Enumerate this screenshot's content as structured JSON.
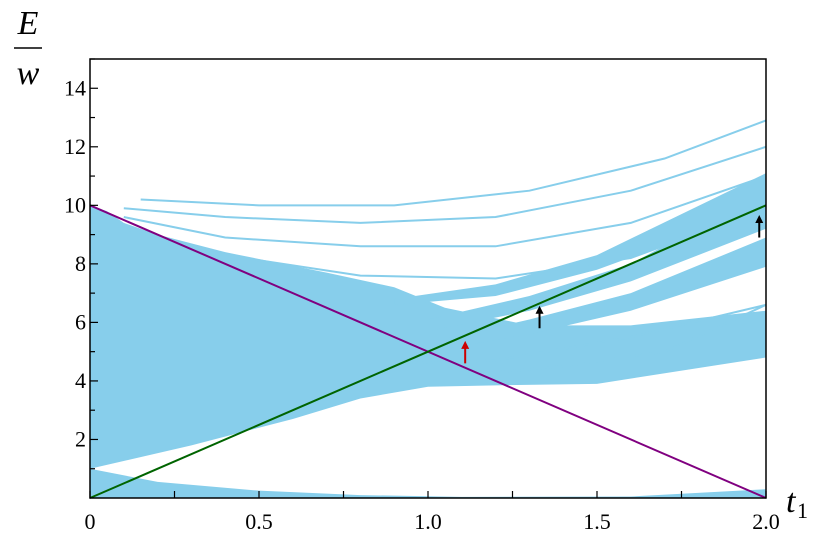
{
  "chart_data": {
    "type": "area",
    "xlabel": "t",
    "xlabel_subscript": "1",
    "ylabel_top": "E",
    "ylabel_bottom": "w",
    "xlim": [
      0,
      2.0
    ],
    "ylim": [
      0,
      15
    ],
    "x_ticks": [
      {
        "value": 0,
        "label": "0"
      },
      {
        "value": 0.5,
        "label": "0.5"
      },
      {
        "value": 1.0,
        "label": "1.0"
      },
      {
        "value": 1.5,
        "label": "1.5"
      },
      {
        "value": 2.0,
        "label": "2.0"
      }
    ],
    "y_ticks": [
      {
        "value": 2,
        "label": "2"
      },
      {
        "value": 4,
        "label": "4"
      },
      {
        "value": 6,
        "label": "6"
      },
      {
        "value": 8,
        "label": "8"
      },
      {
        "value": 10,
        "label": "10"
      },
      {
        "value": 12,
        "label": "12"
      },
      {
        "value": 14,
        "label": "14"
      }
    ],
    "grid": false,
    "colors": {
      "band": "#87ceeb",
      "purple_line": "#800080",
      "green_line": "#006400",
      "red_arrow": "#cc0000",
      "black_arrow": "#000000"
    },
    "series": [
      {
        "kind": "line",
        "color": "#800080",
        "x": [
          0,
          2.0
        ],
        "y": [
          10,
          0
        ]
      },
      {
        "kind": "line",
        "color": "#006400",
        "x": [
          0,
          2.0
        ],
        "y": [
          0,
          10
        ]
      }
    ],
    "bands": [
      {
        "lower": [
          [
            0,
            0
          ],
          [
            0.2,
            0
          ],
          [
            0.6,
            0
          ],
          [
            1.2,
            0
          ],
          [
            2,
            0
          ]
        ],
        "upper": [
          [
            0,
            1.0
          ],
          [
            0.2,
            0.55
          ],
          [
            0.5,
            0.25
          ],
          [
            0.8,
            0.1
          ],
          [
            1.1,
            0.04
          ],
          [
            1.6,
            0.05
          ],
          [
            2.0,
            0.3
          ]
        ]
      },
      {
        "lower": [
          [
            0,
            1.0
          ],
          [
            0.3,
            1.8
          ],
          [
            0.6,
            2.7
          ],
          [
            0.8,
            3.4
          ],
          [
            1.0,
            3.8
          ],
          [
            1.2,
            3.85
          ],
          [
            1.5,
            3.9
          ],
          [
            2.0,
            4.8
          ]
        ],
        "upper": [
          [
            0,
            10
          ],
          [
            0.05,
            9.8
          ],
          [
            0.1,
            9.4
          ],
          [
            0.2,
            9.0
          ],
          [
            0.4,
            8.4
          ],
          [
            0.7,
            7.7
          ],
          [
            0.9,
            7.2
          ],
          [
            1.05,
            6.5
          ],
          [
            1.3,
            5.9
          ],
          [
            1.6,
            5.9
          ],
          [
            2.0,
            6.4
          ]
        ]
      },
      {
        "lower": [
          [
            1.0,
            5.0
          ],
          [
            1.3,
            5.6
          ],
          [
            1.6,
            6.4
          ],
          [
            2.0,
            7.9
          ]
        ],
        "upper": [
          [
            1.0,
            5.3
          ],
          [
            1.3,
            6.1
          ],
          [
            1.6,
            7.0
          ],
          [
            2.0,
            8.9
          ]
        ]
      },
      {
        "lower": [
          [
            1.0,
            5.7
          ],
          [
            1.3,
            6.4
          ],
          [
            1.6,
            7.4
          ],
          [
            2.0,
            9.2
          ]
        ],
        "upper": [
          [
            1.0,
            6.1
          ],
          [
            1.3,
            6.9
          ],
          [
            1.6,
            8.0
          ],
          [
            2.0,
            10.5
          ]
        ]
      },
      {
        "lower": [
          [
            0.9,
            6.6
          ],
          [
            1.2,
            6.9
          ],
          [
            1.5,
            7.8
          ],
          [
            2.0,
            9.9
          ]
        ],
        "upper": [
          [
            0.9,
            6.8
          ],
          [
            1.2,
            7.3
          ],
          [
            1.5,
            8.3
          ],
          [
            2.0,
            11.1
          ]
        ]
      }
    ],
    "thin_curves": [
      {
        "x": [
          0.1,
          0.4,
          0.8,
          1.2,
          1.6,
          2.0
        ],
        "y": [
          9.2,
          8.3,
          7.6,
          7.5,
          8.2,
          9.9
        ]
      },
      {
        "x": [
          0.1,
          0.4,
          0.8,
          1.2,
          1.6,
          2.0
        ],
        "y": [
          9.6,
          8.9,
          8.6,
          8.6,
          9.4,
          11.0
        ]
      },
      {
        "x": [
          0.1,
          0.4,
          0.8,
          1.2,
          1.6,
          2.0
        ],
        "y": [
          9.9,
          9.6,
          9.4,
          9.6,
          10.5,
          12.0
        ]
      },
      {
        "x": [
          0.15,
          0.5,
          0.9,
          1.3,
          1.7,
          2.0
        ],
        "y": [
          10.2,
          10.0,
          10.0,
          10.5,
          11.6,
          12.9
        ]
      },
      {
        "x": [
          0.9,
          1.2,
          1.6,
          2.0
        ],
        "y": [
          4.6,
          4.7,
          5.5,
          6.6
        ]
      },
      {
        "x": [
          1.1,
          1.4,
          1.7,
          2.0
        ],
        "y": [
          4.2,
          4.5,
          5.0,
          6.6
        ]
      }
    ],
    "arrows": [
      {
        "x": 1.11,
        "y_from": 4.6,
        "y_to": 5.3,
        "color": "#cc0000"
      },
      {
        "x": 1.33,
        "y_from": 5.8,
        "y_to": 6.5,
        "color": "#000000"
      },
      {
        "x": 1.98,
        "y_from": 8.9,
        "y_to": 9.6,
        "color": "#000000"
      }
    ]
  }
}
